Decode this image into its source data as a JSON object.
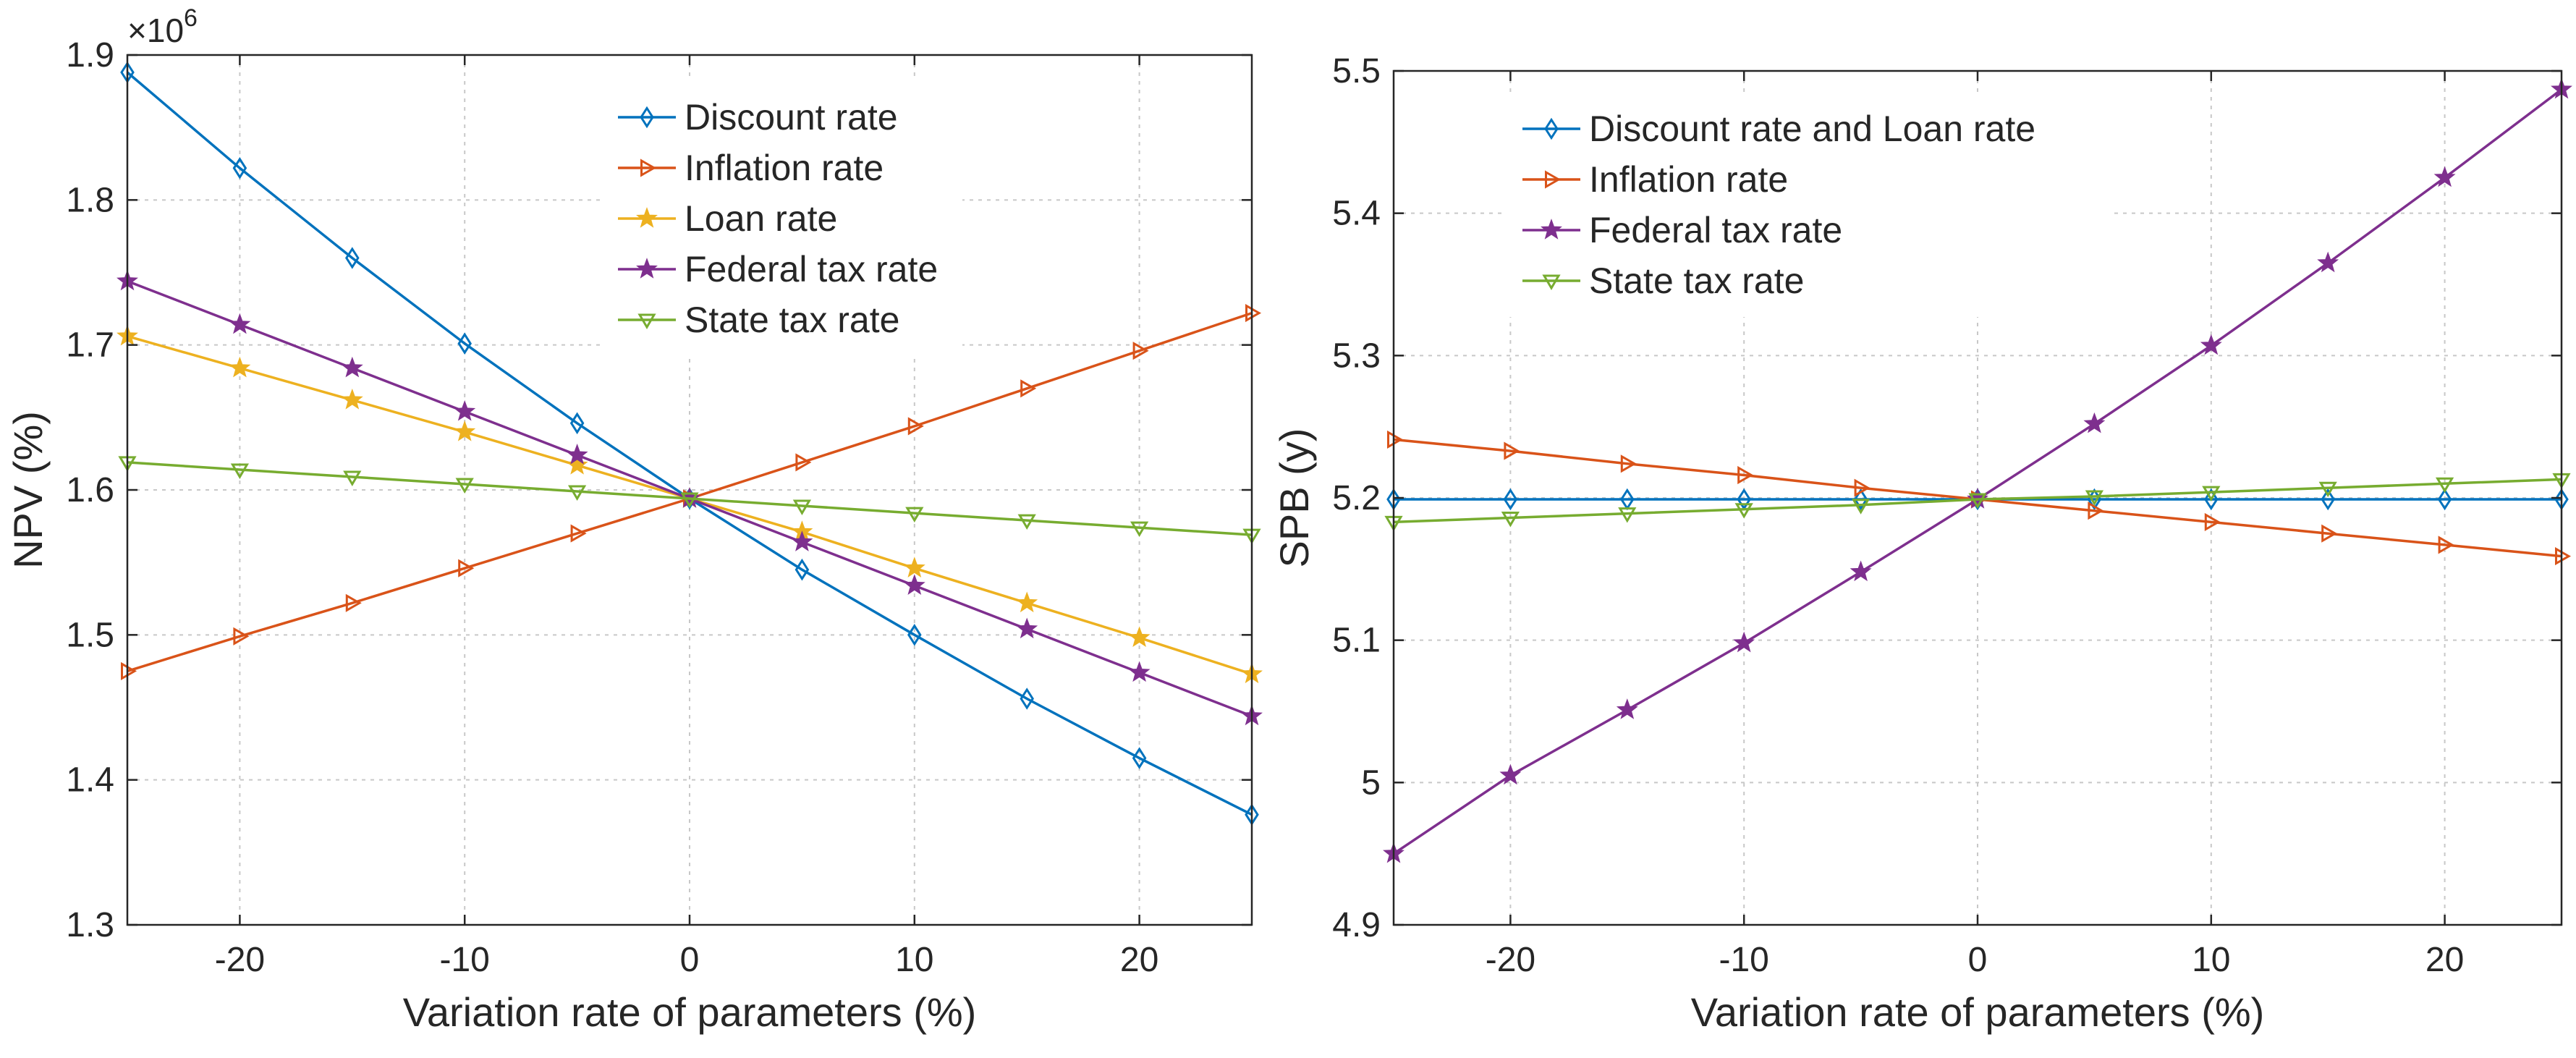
{
  "colors": {
    "blue": "#0072BD",
    "orange": "#D95319",
    "yellow": "#EDB120",
    "purple": "#7E2F8E",
    "green": "#77AC30"
  },
  "chart_data": [
    {
      "type": "line",
      "title": "",
      "xlabel": "Variation rate of parameters (%)",
      "ylabel": "NPV (%)",
      "y_multiplier": "×10",
      "y_multiplier_exp": "6",
      "xlim": [
        -25,
        25
      ],
      "ylim": [
        1.3,
        1.9
      ],
      "xticks": [
        -20,
        -10,
        0,
        10,
        20
      ],
      "xtick_labels": [
        "-20",
        "-10",
        "0",
        "10",
        "20"
      ],
      "yticks": [
        1.3,
        1.4,
        1.5,
        1.6,
        1.7,
        1.8,
        1.9
      ],
      "ytick_labels": [
        "1.3",
        "1.4",
        "1.5",
        "1.6",
        "1.7",
        "1.8",
        "1.9"
      ],
      "grid": true,
      "legend_position": "top",
      "x": [
        -25,
        -20,
        -15,
        -10,
        -5,
        0,
        5,
        10,
        15,
        20,
        25
      ],
      "series": [
        {
          "name": "Discount rate",
          "color": "blue",
          "marker": "diamond",
          "values": [
            1.888,
            1.822,
            1.76,
            1.701,
            1.646,
            1.594,
            1.545,
            1.5,
            1.456,
            1.415,
            1.376
          ]
        },
        {
          "name": "Inflation rate",
          "color": "orange",
          "marker": "triangle-right",
          "values": [
            1.475,
            1.499,
            1.522,
            1.546,
            1.57,
            1.594,
            1.619,
            1.644,
            1.67,
            1.696,
            1.722
          ]
        },
        {
          "name": "Loan rate",
          "color": "yellow",
          "marker": "star",
          "values": [
            1.706,
            1.684,
            1.662,
            1.64,
            1.617,
            1.594,
            1.571,
            1.546,
            1.522,
            1.498,
            1.473
          ]
        },
        {
          "name": "Federal tax rate",
          "color": "purple",
          "marker": "pentagram",
          "values": [
            1.744,
            1.714,
            1.684,
            1.654,
            1.624,
            1.594,
            1.564,
            1.534,
            1.504,
            1.474,
            1.444
          ]
        },
        {
          "name": "State tax rate",
          "color": "green",
          "marker": "triangle-down",
          "values": [
            1.619,
            1.614,
            1.609,
            1.604,
            1.599,
            1.594,
            1.589,
            1.584,
            1.579,
            1.574,
            1.569
          ]
        }
      ]
    },
    {
      "type": "line",
      "title": "",
      "xlabel": "Variation rate of parameters (%)",
      "ylabel": "SPB (y)",
      "xlim": [
        -25,
        25
      ],
      "ylim": [
        4.9,
        5.5
      ],
      "xticks": [
        -20,
        -10,
        0,
        10,
        20
      ],
      "xtick_labels": [
        "-20",
        "-10",
        "0",
        "10",
        "20"
      ],
      "yticks": [
        4.9,
        5.0,
        5.1,
        5.2,
        5.3,
        5.4,
        5.5
      ],
      "ytick_labels": [
        "4.9",
        "5",
        "5.1",
        "5.2",
        "5.3",
        "5.4",
        "5.5"
      ],
      "grid": true,
      "legend_position": "top-left",
      "x": [
        -25,
        -20,
        -15,
        -10,
        -5,
        0,
        5,
        10,
        15,
        20,
        25
      ],
      "series": [
        {
          "name": "Discount rate and Loan rate",
          "color": "blue",
          "marker": "diamond",
          "values": [
            5.199,
            5.199,
            5.199,
            5.199,
            5.199,
            5.199,
            5.199,
            5.199,
            5.199,
            5.199,
            5.199
          ]
        },
        {
          "name": "Inflation rate",
          "color": "orange",
          "marker": "triangle-right",
          "values": [
            5.241,
            5.233,
            5.224,
            5.216,
            5.207,
            5.199,
            5.191,
            5.183,
            5.175,
            5.167,
            5.159
          ]
        },
        {
          "name": "Federal tax rate",
          "color": "purple",
          "marker": "pentagram",
          "values": [
            4.95,
            5.005,
            5.051,
            5.098,
            5.148,
            5.199,
            5.252,
            5.307,
            5.365,
            5.425,
            5.487
          ]
        },
        {
          "name": "State tax rate",
          "color": "green",
          "marker": "triangle-down",
          "values": [
            5.183,
            5.186,
            5.189,
            5.192,
            5.195,
            5.199,
            5.201,
            5.204,
            5.207,
            5.21,
            5.213
          ]
        }
      ]
    }
  ]
}
